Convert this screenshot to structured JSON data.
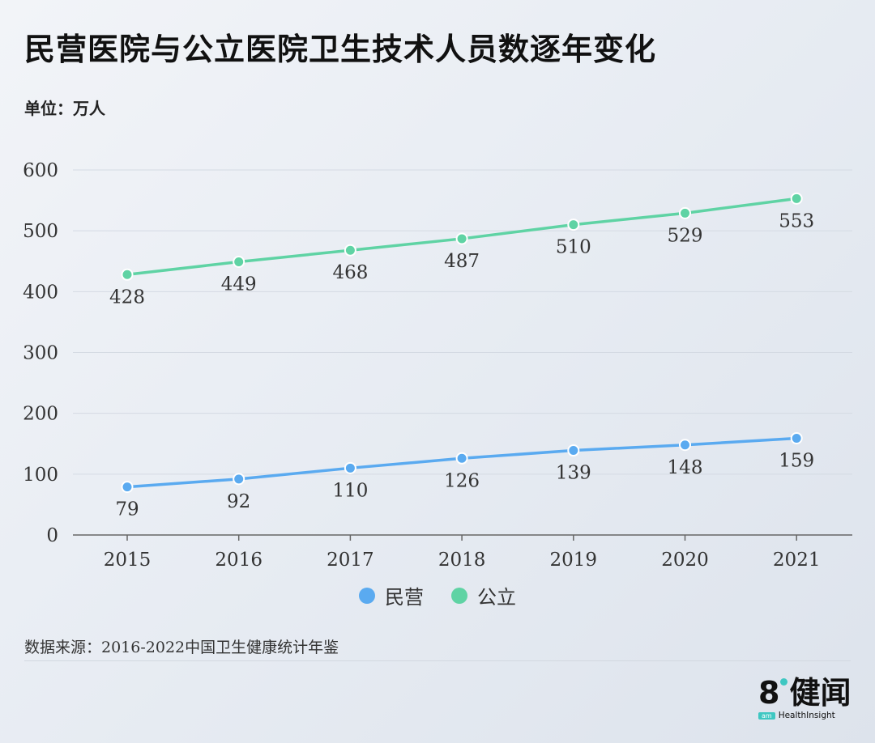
{
  "title": "民营医院与公立医院卫生技术人员数逐年变化",
  "unit": "单位：万人",
  "source": "数据来源：2016-2022中国卫生健康统计年鉴",
  "brand": {
    "main": "8",
    "name": "健闻",
    "tag": "am",
    "sub": "HealthInsight",
    "color": "#3ec7c2"
  },
  "chart_data": {
    "type": "line",
    "x": [
      "2015",
      "2016",
      "2017",
      "2018",
      "2019",
      "2020",
      "2021"
    ],
    "yticks": [
      "0",
      "100",
      "200",
      "300",
      "400",
      "500",
      "600"
    ],
    "ylim": [
      0,
      600
    ],
    "grid": true,
    "legend_position": "bottom",
    "series": [
      {
        "name": "民营",
        "color": "#5aaaf0",
        "values": [
          79,
          92,
          110,
          126,
          139,
          148,
          159
        ]
      },
      {
        "name": "公立",
        "color": "#5fd3a4",
        "values": [
          428,
          449,
          468,
          487,
          510,
          529,
          553
        ]
      }
    ]
  }
}
